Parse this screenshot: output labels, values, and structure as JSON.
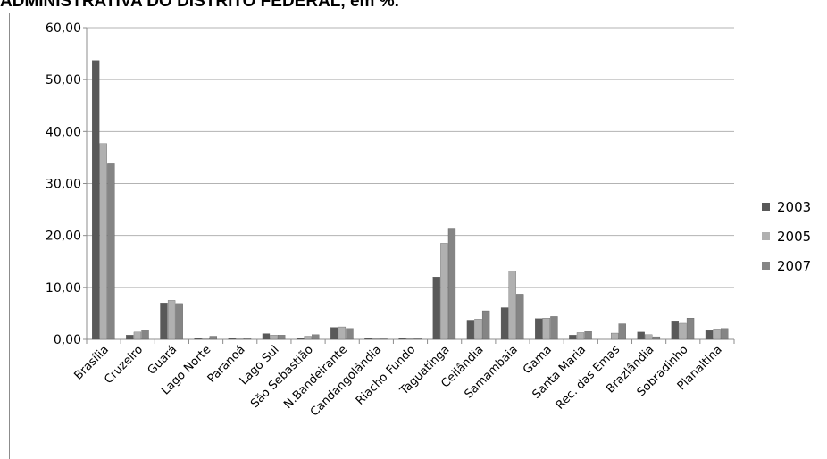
{
  "title": "ADMINISTRATIVA DO DISTRITO FEDERAL, em %.",
  "chart_data": {
    "type": "bar",
    "title": "ADMINISTRATIVA DO DISTRITO FEDERAL, em %.",
    "xlabel": "",
    "ylabel": "",
    "ylim": [
      0,
      60
    ],
    "yticks": [
      "0,00",
      "10,00",
      "20,00",
      "30,00",
      "40,00",
      "50,00",
      "60,00"
    ],
    "grid": true,
    "legend": "right",
    "categories": [
      "Brasília",
      "Cruzeiro",
      "Guará",
      "Lago Norte",
      "Paranoá",
      "Lago Sul",
      "São Sebastião",
      "N.Bandeirante",
      "Candangolândia",
      "Riacho Fundo",
      "Taguatinga",
      "Ceilândia",
      "Samambaia",
      "Gama",
      "Santa Maria",
      "Rec. das Emas",
      "Brazlândia",
      "Sobradinho",
      "Planaltina"
    ],
    "series": [
      {
        "name": "2003",
        "color": "#595959",
        "values": [
          53.7,
          0.8,
          7.0,
          0.2,
          0.3,
          1.1,
          0.2,
          2.3,
          0.2,
          0.2,
          12.0,
          3.7,
          6.1,
          4.0,
          0.8,
          0.0,
          1.4,
          3.4,
          1.7
        ]
      },
      {
        "name": "2005",
        "color": "#b0b0b0",
        "values": [
          37.7,
          1.4,
          7.5,
          0.2,
          0.2,
          0.8,
          0.6,
          2.4,
          0.1,
          0.1,
          18.5,
          3.9,
          13.2,
          4.1,
          1.3,
          1.2,
          0.9,
          3.1,
          2.0
        ]
      },
      {
        "name": "2007",
        "color": "#858585",
        "values": [
          33.8,
          1.8,
          6.9,
          0.6,
          0.2,
          0.8,
          0.9,
          2.1,
          0.1,
          0.3,
          21.4,
          5.5,
          8.7,
          4.4,
          1.5,
          3.0,
          0.5,
          4.1,
          2.1
        ]
      }
    ]
  }
}
